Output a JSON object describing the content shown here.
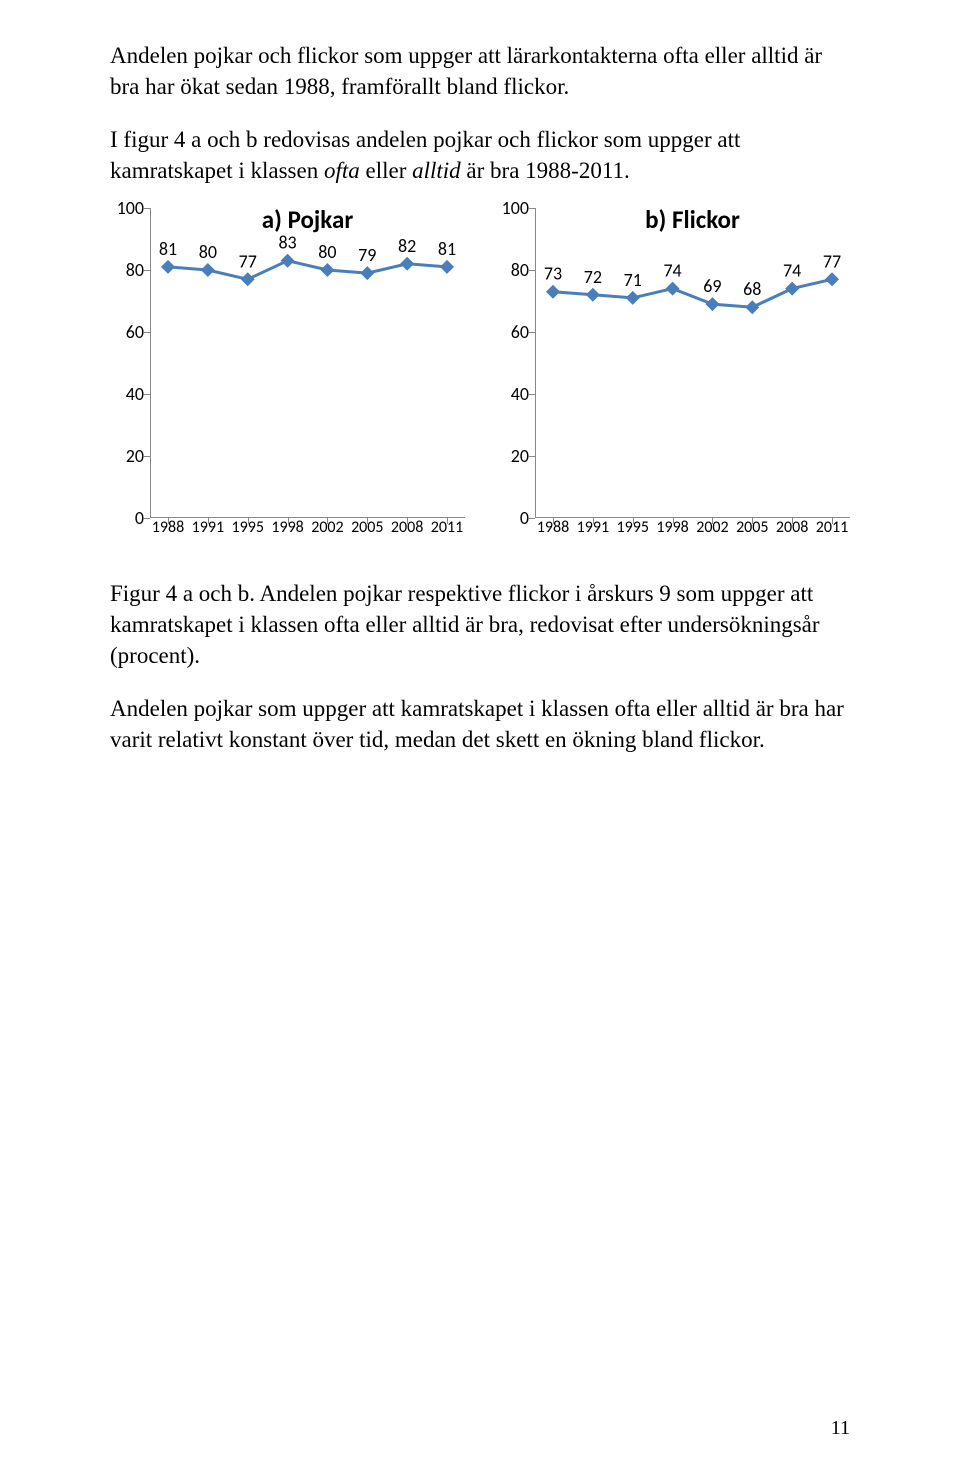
{
  "paragraphs": {
    "p1": "Andelen pojkar och flickor som uppger att lärarkontakterna ofta eller alltid är bra har ökat sedan 1988, framförallt bland flickor.",
    "p2_prefix": "I figur 4 a och b redovisas andelen pojkar och flickor som uppger att kamratskapet i klassen ",
    "p2_italic": "ofta",
    "p2_mid": " eller ",
    "p2_italic2": "alltid",
    "p2_suffix": " är bra 1988-2011.",
    "caption": "Figur 4 a och b. Andelen pojkar respektive flickor i årskurs 9 som uppger att kamratskapet i klassen ofta eller alltid är bra, redovisat efter undersökningsår (procent).",
    "p3": "Andelen pojkar som uppger att kamratskapet i klassen ofta eller alltid är bra har varit relativt konstant över tid, medan det skett en ökning bland flickor."
  },
  "page_number": "11",
  "chart_a": {
    "title": "a) Pojkar",
    "type": "line",
    "x_labels": [
      "1988",
      "1991",
      "1995",
      "1998",
      "2002",
      "2005",
      "2008",
      "2011"
    ],
    "values": [
      81,
      80,
      77,
      83,
      80,
      79,
      82,
      81
    ],
    "line_color": "#4a7ebb",
    "marker_fill": "#4a7ebb",
    "marker_size": 7,
    "line_width": 3,
    "ylim": [
      0,
      100
    ],
    "ytick_step": 20,
    "y_ticks": [
      "0",
      "20",
      "40",
      "60",
      "80",
      "100"
    ],
    "label_fontsize": 18,
    "label_color": "#000000",
    "axis_color": "#888888",
    "background_color": "#ffffff"
  },
  "chart_b": {
    "title": "b) Flickor",
    "type": "line",
    "x_labels": [
      "1988",
      "1991",
      "1995",
      "1998",
      "2002",
      "2005",
      "2008",
      "2011"
    ],
    "values": [
      73,
      72,
      71,
      74,
      69,
      68,
      74,
      77
    ],
    "line_color": "#4a7ebb",
    "marker_fill": "#4a7ebb",
    "marker_size": 7,
    "line_width": 3,
    "ylim": [
      0,
      100
    ],
    "ytick_step": 20,
    "y_ticks": [
      "0",
      "20",
      "40",
      "60",
      "80",
      "100"
    ],
    "label_fontsize": 18,
    "label_color": "#000000",
    "axis_color": "#888888",
    "background_color": "#ffffff"
  }
}
